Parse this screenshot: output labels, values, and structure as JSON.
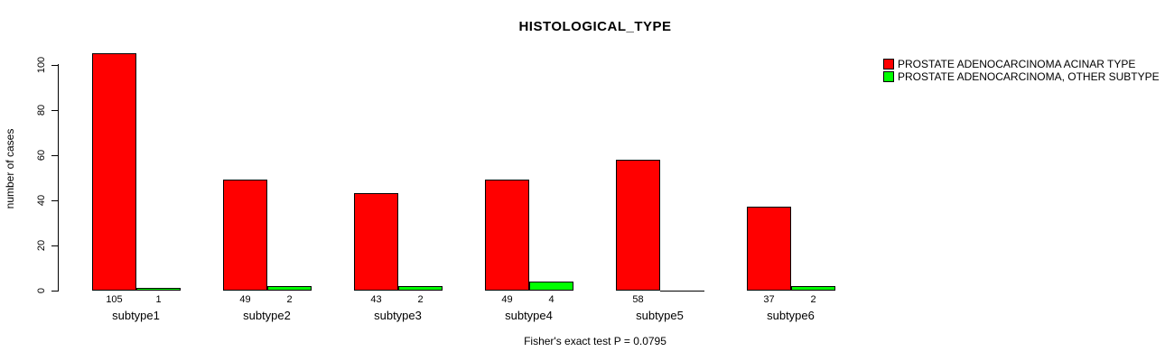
{
  "title": "HISTOLOGICAL_TYPE",
  "ylabel": "number of cases",
  "caption": "Fisher's exact test P = 0.0795",
  "legend": {
    "position": "top-right",
    "entries": [
      {
        "label": "PROSTATE ADENOCARCINOMA ACINAR TYPE",
        "color": "#FF0000"
      },
      {
        "label": "PROSTATE ADENOCARCINOMA, OTHER SUBTYPE",
        "color": "#00FF00"
      }
    ]
  },
  "chart_data": {
    "type": "bar",
    "title": "HISTOLOGICAL_TYPE",
    "xlabel": "",
    "ylabel": "number of cases",
    "categories": [
      "subtype1",
      "subtype2",
      "subtype3",
      "subtype4",
      "subtype5",
      "subtype6"
    ],
    "series": [
      {
        "name": "PROSTATE ADENOCARCINOMA ACINAR TYPE",
        "color": "#FF0000",
        "values": [
          105,
          49,
          43,
          49,
          58,
          37
        ]
      },
      {
        "name": "PROSTATE ADENOCARCINOMA, OTHER SUBTYPE",
        "color": "#00FF00",
        "values": [
          1,
          2,
          2,
          4,
          0,
          2
        ]
      }
    ],
    "bar_value_labels_shown": true,
    "zero_values_unlabeled": true,
    "ylim": [
      0,
      100
    ],
    "yticks": [
      0,
      20,
      40,
      60,
      80,
      100
    ],
    "grid": false,
    "legend_position": "top-right",
    "annotation": "Fisher's exact test P = 0.0795"
  }
}
